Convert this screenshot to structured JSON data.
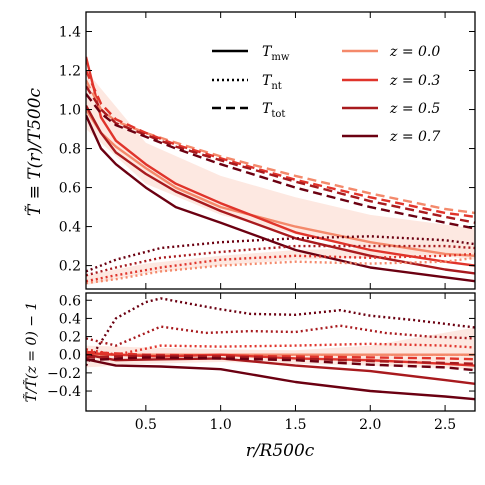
{
  "chart_data": [
    {
      "type": "line",
      "panel": "top",
      "ylabel": "T̃ ≡ T(r)/T500c",
      "xlim": [
        0.1,
        2.7
      ],
      "ylim": [
        0.08,
        1.5
      ],
      "yticks": [
        0.2,
        0.4,
        0.6,
        0.8,
        1.0,
        1.2,
        1.4
      ],
      "ytick_labels": [
        "0.2",
        "0.4",
        "0.6",
        "0.8",
        "1.0",
        "1.2",
        "1.4"
      ],
      "grid": false,
      "legend": {
        "placement": "top-right",
        "styles": [
          {
            "label": "T",
            "sub": "mw",
            "dash": "solid"
          },
          {
            "label": "T",
            "sub": "nt",
            "dash": "dotted"
          },
          {
            "label": "T",
            "sub": "tot",
            "dash": "dashed"
          }
        ],
        "redshifts": [
          {
            "label": "z = 0.0",
            "color": "#f4896b"
          },
          {
            "label": "z = 0.3",
            "color": "#e0342b"
          },
          {
            "label": "z = 0.5",
            "color": "#a81a1e"
          },
          {
            "label": "z = 0.7",
            "color": "#6b0011"
          }
        ]
      },
      "bands": [
        {
          "x": [
            0.1,
            0.5,
            1.0,
            1.5,
            2.0,
            2.7
          ],
          "lower": [
            0.9,
            0.62,
            0.46,
            0.36,
            0.29,
            0.23
          ],
          "upper": [
            1.2,
            0.83,
            0.66,
            0.55,
            0.46,
            0.39
          ],
          "color": "#fde2da"
        },
        {
          "x": [
            0.1,
            0.5,
            1.0,
            1.5,
            2.0,
            2.7
          ],
          "lower": [
            0.1,
            0.16,
            0.2,
            0.23,
            0.24,
            0.25
          ],
          "upper": [
            0.15,
            0.21,
            0.25,
            0.28,
            0.29,
            0.3
          ],
          "color": "#fde2da"
        }
      ],
      "series": [
        {
          "color": "#f4896b",
          "dash": "solid",
          "x": [
            0.1,
            0.2,
            0.3,
            0.5,
            0.7,
            1.0,
            1.5,
            2.0,
            2.5,
            2.7
          ],
          "y": [
            1.0,
            0.88,
            0.81,
            0.7,
            0.6,
            0.5,
            0.4,
            0.32,
            0.26,
            0.25
          ]
        },
        {
          "color": "#e0342b",
          "dash": "solid",
          "x": [
            0.1,
            0.2,
            0.3,
            0.5,
            0.7,
            1.0,
            1.5,
            2.0,
            2.5,
            2.7
          ],
          "y": [
            1.27,
            0.96,
            0.84,
            0.72,
            0.62,
            0.52,
            0.37,
            0.28,
            0.22,
            0.2
          ]
        },
        {
          "color": "#a81a1e",
          "dash": "solid",
          "x": [
            0.1,
            0.2,
            0.3,
            0.5,
            0.7,
            1.0,
            1.5,
            2.0,
            2.5,
            2.7
          ],
          "y": [
            1.02,
            0.88,
            0.78,
            0.67,
            0.58,
            0.48,
            0.34,
            0.25,
            0.18,
            0.16
          ]
        },
        {
          "color": "#6b0011",
          "dash": "solid",
          "x": [
            0.1,
            0.2,
            0.3,
            0.5,
            0.7,
            1.0,
            1.5,
            2.0,
            2.5,
            2.7
          ],
          "y": [
            0.97,
            0.8,
            0.72,
            0.6,
            0.5,
            0.42,
            0.28,
            0.19,
            0.14,
            0.12
          ]
        },
        {
          "color": "#f4896b",
          "dash": "dotted",
          "x": [
            0.1,
            0.3,
            0.6,
            1.0,
            1.5,
            2.0,
            2.5,
            2.7
          ],
          "y": [
            0.11,
            0.13,
            0.17,
            0.2,
            0.22,
            0.21,
            0.22,
            0.24
          ]
        },
        {
          "color": "#e0342b",
          "dash": "dotted",
          "x": [
            0.1,
            0.3,
            0.6,
            1.0,
            1.5,
            2.0,
            2.5,
            2.7
          ],
          "y": [
            0.12,
            0.15,
            0.19,
            0.23,
            0.25,
            0.24,
            0.25,
            0.26
          ]
        },
        {
          "color": "#a81a1e",
          "dash": "dotted",
          "x": [
            0.1,
            0.3,
            0.6,
            1.0,
            1.5,
            2.0,
            2.5,
            2.7
          ],
          "y": [
            0.15,
            0.19,
            0.24,
            0.27,
            0.3,
            0.3,
            0.3,
            0.29
          ]
        },
        {
          "color": "#6b0011",
          "dash": "dotted",
          "x": [
            0.1,
            0.3,
            0.6,
            1.0,
            1.5,
            2.0,
            2.5,
            2.7
          ],
          "y": [
            0.17,
            0.23,
            0.29,
            0.32,
            0.34,
            0.35,
            0.33,
            0.31
          ]
        },
        {
          "color": "#f4896b",
          "dash": "dashed",
          "x": [
            0.1,
            0.2,
            0.3,
            0.5,
            0.7,
            1.0,
            1.5,
            2.0,
            2.5,
            2.7
          ],
          "y": [
            1.15,
            1.0,
            0.94,
            0.88,
            0.83,
            0.76,
            0.66,
            0.57,
            0.49,
            0.47
          ]
        },
        {
          "color": "#e0342b",
          "dash": "dashed",
          "x": [
            0.1,
            0.2,
            0.3,
            0.5,
            0.7,
            1.0,
            1.5,
            2.0,
            2.5,
            2.7
          ],
          "y": [
            1.2,
            1.03,
            0.95,
            0.88,
            0.82,
            0.75,
            0.64,
            0.55,
            0.47,
            0.45
          ]
        },
        {
          "color": "#a81a1e",
          "dash": "dashed",
          "x": [
            0.1,
            0.2,
            0.3,
            0.5,
            0.7,
            1.0,
            1.5,
            2.0,
            2.5,
            2.7
          ],
          "y": [
            1.12,
            1.0,
            0.93,
            0.87,
            0.81,
            0.74,
            0.63,
            0.53,
            0.45,
            0.42
          ]
        },
        {
          "color": "#6b0011",
          "dash": "dashed",
          "x": [
            0.1,
            0.2,
            0.3,
            0.5,
            0.7,
            1.0,
            1.5,
            2.0,
            2.5,
            2.7
          ],
          "y": [
            1.08,
            0.98,
            0.92,
            0.86,
            0.8,
            0.72,
            0.6,
            0.5,
            0.42,
            0.39
          ]
        }
      ]
    },
    {
      "type": "line",
      "panel": "bottom",
      "xlabel": "r/R500c",
      "ylabel": "T̃/T̃(z = 0) − 1",
      "xlim": [
        0.1,
        2.7
      ],
      "ylim": [
        -0.62,
        0.68
      ],
      "xticks": [
        0.5,
        1.0,
        1.5,
        2.0,
        2.5
      ],
      "xtick_labels": [
        "0.5",
        "1.0",
        "1.5",
        "2.0",
        "2.5"
      ],
      "yticks": [
        -0.4,
        -0.2,
        0.0,
        0.2,
        0.4,
        0.6
      ],
      "ytick_labels": [
        "−0.4",
        "−0.2",
        "0.0",
        "0.2",
        "0.4",
        "0.6"
      ],
      "grid": false,
      "bands": [
        {
          "x": [
            0.1,
            0.5,
            1.0,
            1.5,
            2.0,
            2.7
          ],
          "lower": [
            -0.14,
            -0.1,
            -0.08,
            -0.1,
            -0.12,
            -0.16
          ],
          "upper": [
            0.1,
            0.08,
            0.06,
            0.05,
            0.1,
            0.3
          ],
          "color": "#fde2da"
        }
      ],
      "series": [
        {
          "color": "#f4896b",
          "dash": "solid",
          "x": [
            0.1,
            2.7
          ],
          "y": [
            0.0,
            0.0
          ]
        },
        {
          "color": "#f4896b",
          "dash": "dotted",
          "x": [
            0.1,
            2.7
          ],
          "y": [
            0.0,
            0.0
          ]
        },
        {
          "color": "#f4896b",
          "dash": "dashed",
          "x": [
            0.1,
            2.7
          ],
          "y": [
            0.0,
            0.0
          ]
        },
        {
          "color": "#e0342b",
          "dash": "solid",
          "x": [
            0.1,
            0.3,
            0.6,
            1.0,
            1.5,
            2.0,
            2.5,
            2.7
          ],
          "y": [
            0.02,
            0.0,
            -0.02,
            0.0,
            -0.04,
            -0.06,
            -0.1,
            -0.12
          ]
        },
        {
          "color": "#a81a1e",
          "dash": "solid",
          "x": [
            0.1,
            0.3,
            0.6,
            1.0,
            1.5,
            2.0,
            2.5,
            2.7
          ],
          "y": [
            0.0,
            -0.06,
            -0.05,
            -0.04,
            -0.12,
            -0.18,
            -0.28,
            -0.32
          ]
        },
        {
          "color": "#6b0011",
          "dash": "solid",
          "x": [
            0.1,
            0.3,
            0.6,
            1.0,
            1.5,
            2.0,
            2.5,
            2.7
          ],
          "y": [
            -0.05,
            -0.12,
            -0.13,
            -0.16,
            -0.3,
            -0.4,
            -0.46,
            -0.49
          ]
        },
        {
          "color": "#e0342b",
          "dash": "dotted",
          "x": [
            0.1,
            0.3,
            0.6,
            1.0,
            1.5,
            2.0,
            2.5,
            2.7
          ],
          "y": [
            0.06,
            0.0,
            0.1,
            0.09,
            0.1,
            0.12,
            0.1,
            0.08
          ]
        },
        {
          "color": "#a81a1e",
          "dash": "dotted",
          "x": [
            0.1,
            0.3,
            0.6,
            0.9,
            1.2,
            1.5,
            1.8,
            2.1,
            2.4,
            2.7
          ],
          "y": [
            0.18,
            0.1,
            0.31,
            0.24,
            0.26,
            0.25,
            0.32,
            0.24,
            0.2,
            0.18
          ]
        },
        {
          "color": "#6b0011",
          "dash": "dotted",
          "x": [
            0.1,
            0.3,
            0.5,
            0.6,
            0.8,
            1.0,
            1.2,
            1.5,
            1.8,
            2.0,
            2.3,
            2.7
          ],
          "y": [
            -0.12,
            0.4,
            0.58,
            0.62,
            0.56,
            0.5,
            0.45,
            0.44,
            0.49,
            0.43,
            0.38,
            0.3
          ]
        },
        {
          "color": "#e0342b",
          "dash": "dashed",
          "x": [
            0.1,
            0.5,
            1.0,
            1.5,
            2.0,
            2.5,
            2.7
          ],
          "y": [
            0.03,
            0.0,
            -0.01,
            -0.02,
            -0.03,
            -0.04,
            -0.05
          ]
        },
        {
          "color": "#a81a1e",
          "dash": "dashed",
          "x": [
            0.1,
            0.5,
            1.0,
            1.5,
            2.0,
            2.5,
            2.7
          ],
          "y": [
            -0.03,
            -0.01,
            -0.02,
            -0.04,
            -0.07,
            -0.09,
            -0.1
          ]
        },
        {
          "color": "#6b0011",
          "dash": "dashed",
          "x": [
            0.1,
            0.5,
            1.0,
            1.5,
            2.0,
            2.5,
            2.7
          ],
          "y": [
            -0.06,
            -0.03,
            -0.04,
            -0.06,
            -0.11,
            -0.14,
            -0.17
          ]
        }
      ]
    }
  ]
}
